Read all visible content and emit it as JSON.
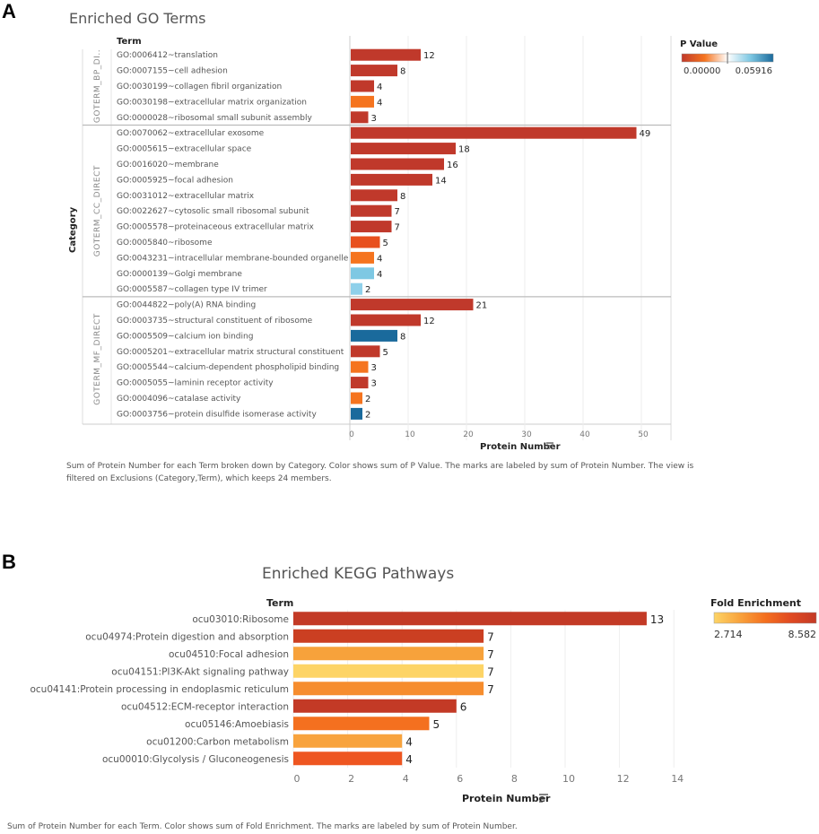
{
  "panels": {
    "a": "A",
    "b": "B"
  },
  "chart_data": [
    {
      "type": "bar",
      "orientation": "horizontal",
      "title": "Enriched GO Terms",
      "row_header": "Term",
      "group_header": "Category",
      "xlabel": "Protein Number",
      "xlim": [
        0,
        55
      ],
      "xticks": [
        0,
        10,
        20,
        30,
        40,
        50
      ],
      "groups": [
        {
          "name": "GOTERM_BP_DI..",
          "items": [
            {
              "term": "GO:0006412~translation",
              "value": 12,
              "pvalue": 0.0,
              "color": "#c0392b"
            },
            {
              "term": "GO:0007155~cell adhesion",
              "value": 8,
              "pvalue": 0.0,
              "color": "#c0392b"
            },
            {
              "term": "GO:0030199~collagen fibril organization",
              "value": 4,
              "pvalue": 0.0,
              "color": "#c0392b"
            },
            {
              "term": "GO:0030198~extracellular matrix organization",
              "value": 4,
              "pvalue": 0.01,
              "color": "#f5741f"
            },
            {
              "term": "GO:0000028~ribosomal small subunit assembly",
              "value": 3,
              "pvalue": 0.0,
              "color": "#c0392b"
            }
          ]
        },
        {
          "name": "GOTERM_CC_DIRECT",
          "items": [
            {
              "term": "GO:0070062~extracellular exosome",
              "value": 49,
              "pvalue": 0.0,
              "color": "#c0392b"
            },
            {
              "term": "GO:0005615~extracellular space",
              "value": 18,
              "pvalue": 0.0,
              "color": "#c0392b"
            },
            {
              "term": "GO:0016020~membrane",
              "value": 16,
              "pvalue": 0.0,
              "color": "#c0392b"
            },
            {
              "term": "GO:0005925~focal adhesion",
              "value": 14,
              "pvalue": 0.0,
              "color": "#c0392b"
            },
            {
              "term": "GO:0031012~extracellular matrix",
              "value": 8,
              "pvalue": 0.0,
              "color": "#c0392b"
            },
            {
              "term": "GO:0022627~cytosolic small ribosomal subunit",
              "value": 7,
              "pvalue": 0.0,
              "color": "#c0392b"
            },
            {
              "term": "GO:0005578~proteinaceous extracellular matrix",
              "value": 7,
              "pvalue": 0.0,
              "color": "#c0392b"
            },
            {
              "term": "GO:0005840~ribosome",
              "value": 5,
              "pvalue": 0.005,
              "color": "#e8501e"
            },
            {
              "term": "GO:0043231~intracellular membrane-bounded organelle",
              "value": 4,
              "pvalue": 0.012,
              "color": "#f5741f"
            },
            {
              "term": "GO:0000139~Golgi membrane",
              "value": 4,
              "pvalue": 0.04,
              "color": "#7ec8e3"
            },
            {
              "term": "GO:0005587~collagen type IV trimer",
              "value": 2,
              "pvalue": 0.038,
              "color": "#8fd0ea"
            }
          ]
        },
        {
          "name": "GOTERM_MF_DIRECT",
          "items": [
            {
              "term": "GO:0044822~poly(A) RNA binding",
              "value": 21,
              "pvalue": 0.0,
              "color": "#c0392b"
            },
            {
              "term": "GO:0003735~structural constituent of ribosome",
              "value": 12,
              "pvalue": 0.0,
              "color": "#c0392b"
            },
            {
              "term": "GO:0005509~calcium ion binding",
              "value": 8,
              "pvalue": 0.059,
              "color": "#1a6a9c"
            },
            {
              "term": "GO:0005201~extracellular matrix structural constituent",
              "value": 5,
              "pvalue": 0.0,
              "color": "#c0392b"
            },
            {
              "term": "GO:0005544~calcium-dependent phospholipid binding",
              "value": 3,
              "pvalue": 0.01,
              "color": "#f5741f"
            },
            {
              "term": "GO:0005055~laminin receptor activity",
              "value": 3,
              "pvalue": 0.0,
              "color": "#c0392b"
            },
            {
              "term": "GO:0004096~catalase activity",
              "value": 2,
              "pvalue": 0.01,
              "color": "#f5741f"
            },
            {
              "term": "GO:0003756~protein disulfide isomerase activity",
              "value": 2,
              "pvalue": 0.059,
              "color": "#1a6a9c"
            }
          ]
        }
      ],
      "legend": {
        "title": "P Value",
        "min": "0.00000",
        "max": "0.05916",
        "colors": [
          "#c0392b",
          "#f5741f",
          "#ffffff",
          "#7ec8e3",
          "#1a6a9c"
        ],
        "position": "top-right"
      },
      "footnote_lines": [
        "Sum of Protein Number for each Term broken down by Category.  Color shows sum of P Value.  The marks are labeled by sum of Protein Number. The view is",
        "filtered on Exclusions (Category,Term), which keeps 24 members."
      ]
    },
    {
      "type": "bar",
      "orientation": "horizontal",
      "title": "Enriched KEGG Pathways",
      "row_header": "Term",
      "xlabel": "Protein  Number",
      "xlim": [
        0,
        14
      ],
      "xticks": [
        0,
        2,
        4,
        6,
        8,
        10,
        12,
        14
      ],
      "items": [
        {
          "term": "ocu03010:Ribosome",
          "value": 13,
          "fold": 8.5,
          "color": "#c33a26"
        },
        {
          "term": "ocu04974:Protein digestion and absorption",
          "value": 7,
          "fold": 8.3,
          "color": "#cb3f22"
        },
        {
          "term": "ocu04510:Focal adhesion",
          "value": 7,
          "fold": 4.0,
          "color": "#f7a23b"
        },
        {
          "term": "ocu04151:PI3K-Akt signaling pathway",
          "value": 7,
          "fold": 2.8,
          "color": "#fdd466"
        },
        {
          "term": "ocu04141:Protein processing in endoplasmic reticulum",
          "value": 7,
          "fold": 4.4,
          "color": "#f68d2e"
        },
        {
          "term": "ocu04512:ECM-receptor interaction",
          "value": 6,
          "fold": 8.2,
          "color": "#c33a26"
        },
        {
          "term": "ocu05146:Amoebiasis",
          "value": 5,
          "fold": 5.5,
          "color": "#f4701f"
        },
        {
          "term": "ocu01200:Carbon metabolism",
          "value": 4,
          "fold": 4.1,
          "color": "#f8a33d"
        },
        {
          "term": "ocu00010:Glycolysis / Gluconeogenesis",
          "value": 4,
          "fold": 6.5,
          "color": "#ee5621"
        }
      ],
      "legend": {
        "title": "Fold Enrichment",
        "min": "2.714",
        "max": "8.582",
        "colors": [
          "#fdd466",
          "#f8a33d",
          "#f4701f",
          "#e04a22",
          "#c33a26"
        ],
        "position": "top-right"
      },
      "footnote_lines": [
        "Sum of Protein  Number for each Term.  Color shows sum of Fold Enrichment.  The marks are labeled by sum of Protein  Number."
      ]
    }
  ]
}
